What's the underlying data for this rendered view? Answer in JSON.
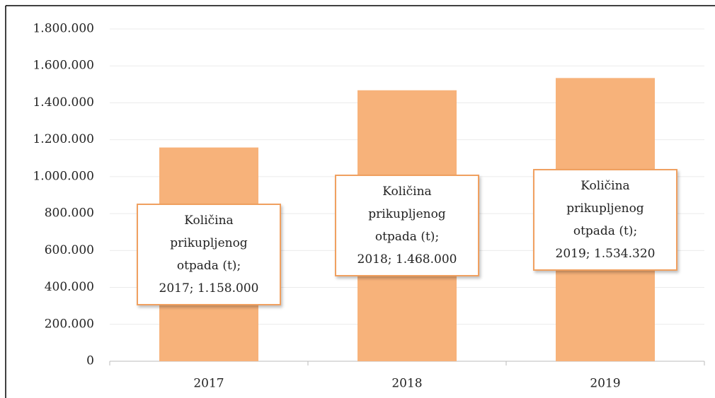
{
  "chart_data": {
    "type": "bar",
    "categories": [
      "2017",
      "2018",
      "2019"
    ],
    "series": [
      {
        "name": "Količina prikupljenog otpada (t)",
        "color": "#f7b27a",
        "values": [
          1158000,
          1468000,
          1534320
        ],
        "value_labels": [
          "1.158.000",
          "1.468.000",
          "1.534.320"
        ]
      }
    ],
    "data_label_separator": ";",
    "ylim": [
      0,
      1800000
    ],
    "yticks": [
      0,
      {
        "value": 200000,
        "label": "200.000"
      },
      {
        "value": 400000,
        "label": "400.000"
      },
      {
        "value": 600000,
        "label": "600.000"
      },
      {
        "value": 800000,
        "label": "800.000"
      },
      {
        "value": 1000000,
        "label": "1.000.000"
      },
      {
        "value": 1200000,
        "label": "1.200.000"
      },
      {
        "value": 1400000,
        "label": "1.400.000"
      },
      {
        "value": 1600000,
        "label": "1.600.000"
      },
      {
        "value": 1800000,
        "label": "1.800.000"
      }
    ],
    "grid": true
  }
}
